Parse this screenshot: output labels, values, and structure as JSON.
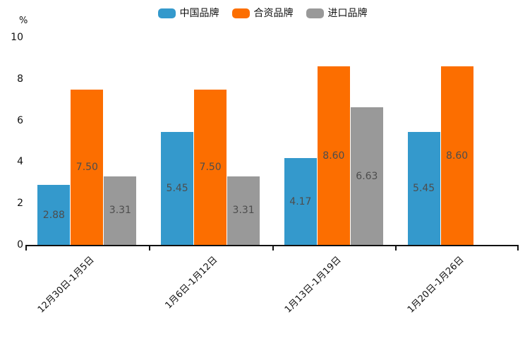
{
  "chart_data": {
    "type": "bar",
    "title": "",
    "unit_label": "%",
    "categories": [
      "12月30日-1月5日",
      "1月6日-1月12日",
      "1月13日-1月19日",
      "1月20日-1月26日"
    ],
    "series": [
      {
        "name": "中国品牌",
        "color": "#3499CC",
        "values": [
          2.88,
          5.45,
          4.17,
          5.45
        ]
      },
      {
        "name": "合资品牌",
        "color": "#FC6E00",
        "values": [
          7.5,
          7.5,
          8.6,
          8.6
        ]
      },
      {
        "name": "进口品牌",
        "color": "#999999",
        "values": [
          3.31,
          3.31,
          6.63,
          null
        ]
      }
    ],
    "xlabel": "",
    "ylabel": "%",
    "ylim": [
      0,
      10
    ],
    "y_ticks": [
      0,
      2,
      4,
      6,
      8,
      10
    ],
    "grid": false,
    "legend_position": "top",
    "value_label_decimals": 2,
    "value_label_color": "#4D4D4D",
    "axis_color": "#111111"
  }
}
